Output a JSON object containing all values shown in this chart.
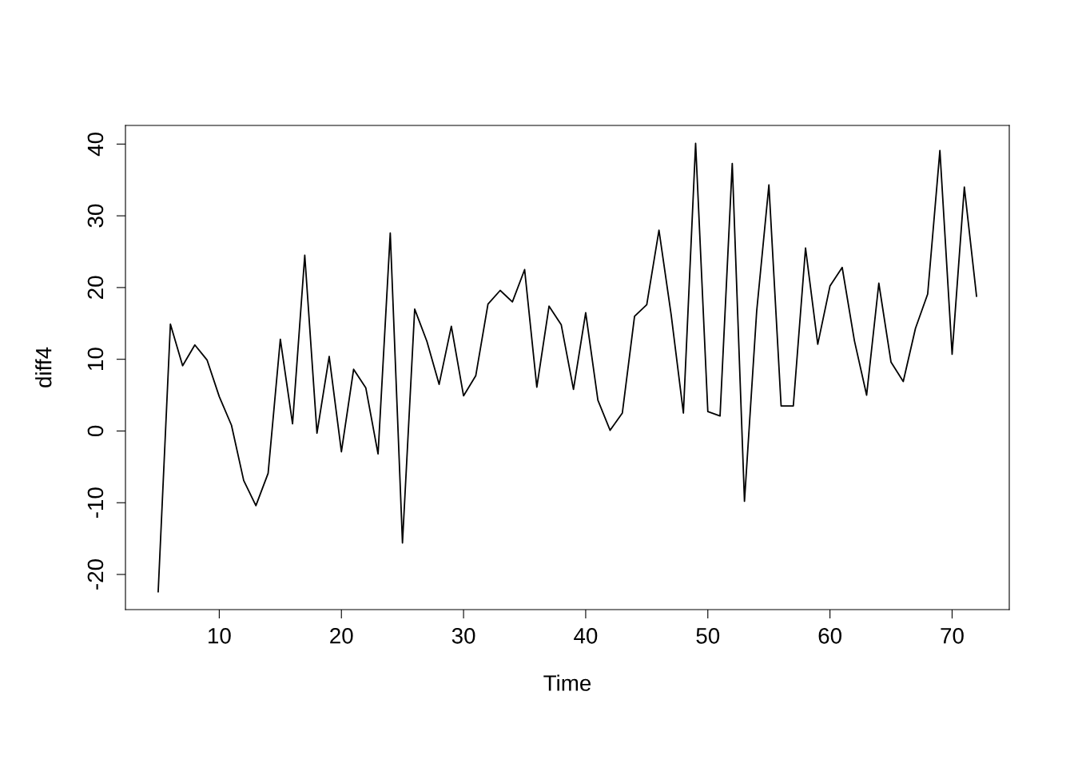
{
  "chart_data": {
    "type": "line",
    "xlabel": "Time",
    "ylabel": "diff4",
    "x": [
      5,
      6,
      7,
      8,
      9,
      10,
      11,
      12,
      13,
      14,
      15,
      16,
      17,
      18,
      19,
      20,
      21,
      22,
      23,
      24,
      25,
      26,
      27,
      28,
      29,
      30,
      31,
      32,
      33,
      34,
      35,
      36,
      37,
      38,
      39,
      40,
      41,
      42,
      43,
      44,
      45,
      46,
      47,
      48,
      49,
      50,
      51,
      52,
      53,
      54,
      55,
      56,
      57,
      58,
      59,
      60,
      61,
      62,
      63,
      64,
      65,
      66,
      67,
      68,
      69,
      70,
      71,
      72
    ],
    "series": [
      {
        "color": "#000000",
        "values": [
          -22.4,
          14.9,
          9.1,
          12.0,
          9.9,
          4.8,
          0.8,
          -6.9,
          -10.4,
          -5.9,
          12.8,
          1.0,
          24.5,
          -0.3,
          10.4,
          -2.9,
          8.6,
          6.0,
          -3.2,
          27.6,
          -15.6,
          17.0,
          12.5,
          6.5,
          14.6,
          4.9,
          7.7,
          17.7,
          19.6,
          18.0,
          22.5,
          6.1,
          17.4,
          14.8,
          5.8,
          16.5,
          4.3,
          0.1,
          2.5,
          16.0,
          17.6,
          28.0,
          16.2,
          2.5,
          40.1,
          2.7,
          2.1,
          37.3,
          -9.8,
          16.7,
          34.3,
          3.5,
          3.5,
          25.5,
          12.1,
          20.2,
          22.8,
          12.6,
          5.0,
          20.6,
          9.6,
          6.9,
          14.3,
          19.1,
          39.1,
          10.7,
          34.0,
          18.8
        ]
      }
    ],
    "xlim": [
      2.32,
      74.68
    ],
    "ylim": [
      -24.9,
      42.6
    ],
    "xticks": [
      10,
      20,
      30,
      40,
      50,
      60,
      70
    ],
    "yticks": [
      -20,
      -10,
      0,
      10,
      20,
      30,
      40
    ],
    "grid": false,
    "legend": false,
    "marker": "none",
    "line_style": "solid"
  }
}
